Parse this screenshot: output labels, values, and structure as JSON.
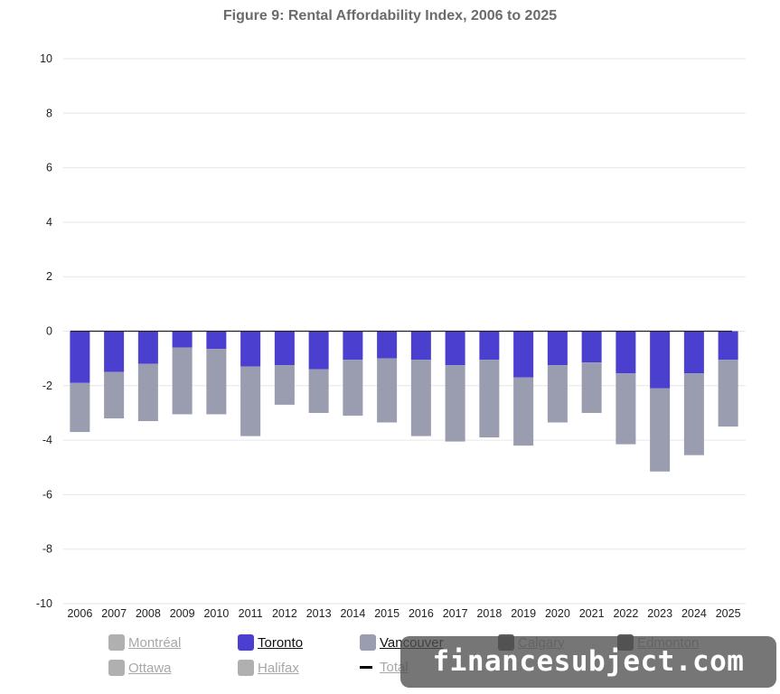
{
  "chart_data": {
    "type": "bar",
    "stacked": true,
    "title": "Figure 9: Rental Affordability Index, 2006 to 2025",
    "xlabel": "",
    "ylabel": "",
    "ylim": [
      -10,
      10
    ],
    "yticks": [
      10,
      8,
      6,
      4,
      2,
      0,
      -2,
      -4,
      -6,
      -8,
      -10
    ],
    "grid": true,
    "legend_position": "bottom",
    "categories": [
      "2006",
      "2007",
      "2008",
      "2009",
      "2010",
      "2011",
      "2012",
      "2013",
      "2014",
      "2015",
      "2016",
      "2017",
      "2018",
      "2019",
      "2020",
      "2021",
      "2022",
      "2023",
      "2024",
      "2025"
    ],
    "series": [
      {
        "name": "Toronto",
        "color": "#4b3fcf",
        "values": [
          -1.9,
          -1.5,
          -1.2,
          -0.6,
          -0.65,
          -1.3,
          -1.25,
          -1.4,
          -1.05,
          -1.0,
          -1.05,
          -1.25,
          -1.05,
          -1.7,
          -1.25,
          -1.15,
          -1.55,
          -2.1,
          -1.55,
          -1.05
        ]
      },
      {
        "name": "Vancouver",
        "color": "#9a9caf",
        "values": [
          -1.8,
          -1.7,
          -2.1,
          -2.45,
          -2.4,
          -2.55,
          -1.45,
          -1.6,
          -2.05,
          -2.35,
          -2.8,
          -2.8,
          -2.85,
          -2.5,
          -2.1,
          -1.85,
          -2.6,
          -3.05,
          -3.0,
          -2.45
        ]
      }
    ],
    "total_line": [
      0,
      0,
      0,
      0,
      0,
      0,
      0,
      0,
      0,
      0,
      0,
      0,
      0,
      0,
      0,
      0,
      0,
      0,
      0,
      0
    ]
  },
  "legend": [
    {
      "label": "Montréal",
      "color": "#b0b0b0",
      "state": "hidden",
      "shape": "square"
    },
    {
      "label": "Toronto",
      "color": "#4b3fcf",
      "state": "active",
      "shape": "square"
    },
    {
      "label": "Vancouver",
      "color": "#9a9caf",
      "state": "active",
      "shape": "square"
    },
    {
      "label": "Calgary",
      "color": "#5c5c5c",
      "state": "hidden",
      "shape": "square"
    },
    {
      "label": "Edmonton",
      "color": "#5c5c5c",
      "state": "hidden",
      "shape": "square"
    },
    {
      "label": "Ottawa",
      "color": "#b0b0b0",
      "state": "hidden",
      "shape": "square"
    },
    {
      "label": "Halifax",
      "color": "#b0b0b0",
      "state": "hidden",
      "shape": "square"
    },
    {
      "label": "Total",
      "color": "#000000",
      "state": "hidden",
      "shape": "line"
    }
  ],
  "watermark": "financesubject.com"
}
